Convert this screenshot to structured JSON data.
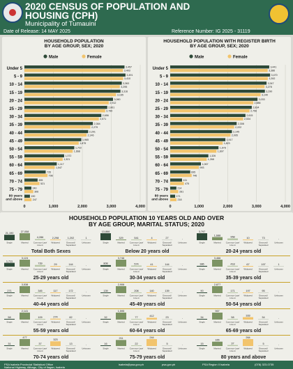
{
  "header": {
    "title_line1": "2020 CENSUS OF POPULATION AND",
    "title_line2": "HOUSING (CPH)",
    "municipality": "Municipality of Tumauini",
    "release": "Date of Release: 14 MAY 2025",
    "reference": "Reference Number:     IG 2025 - 31119"
  },
  "colors": {
    "male": "#2e4a38",
    "female": "#f2c46d",
    "header": "#2e6a4f",
    "accent": "#c9a227"
  },
  "legend": {
    "male": "Male",
    "female": "Female"
  },
  "marital_categories": [
    "Single",
    "Married",
    "Common-Law/Live-in",
    "Widowed",
    "Divorced/Separated/Annulled",
    "Unknown"
  ],
  "marital_category_short": [
    "Single",
    "Married",
    "Common-Law/Live-in",
    "Widowed",
    "Divorced/Separated",
    "Unknown"
  ],
  "chart_data": [
    {
      "type": "bar",
      "title_line1": "HOUSEHOLD POPULATION",
      "title_line2": "BY AGE GROUP, SEX; 2020",
      "categories": [
        "Under 5",
        "5 - 9",
        "10 - 14",
        "15 - 19",
        "20 - 24",
        "25 - 29",
        "30 - 34",
        "35 - 39",
        "40 - 44",
        "45 - 49",
        "50 - 54",
        "55 - 59",
        "60 - 64",
        "65 - 69",
        "70 - 74",
        "75 - 79",
        "80 years and above"
      ],
      "series": [
        {
          "name": "Male",
          "values": [
            3457,
            3491,
            3363,
            3316,
            3060,
            2861,
            2656,
            2364,
            2201,
            1965,
            1722,
            1372,
            1117,
            735,
            455,
            240,
            190
          ]
        },
        {
          "name": "Female",
          "values": [
            3403,
            3410,
            3295,
            3165,
            2912,
            2790,
            2571,
            2279,
            2146,
            1875,
            1668,
            1321,
            1047,
            798,
            521,
            306,
            247
          ]
        }
      ],
      "xlim": [
        0,
        4000
      ],
      "xticks": [
        "0",
        "1,000",
        "2,000",
        "3,000",
        "4,000"
      ]
    },
    {
      "type": "bar",
      "title_line1": "HOUSEHOLD POPULATION WITH REGISTER BIRTH",
      "title_line2": "BY AGE GROUP, SEX; 2020",
      "categories": [
        "Under 5",
        "5 - 9",
        "10 - 14",
        "15 - 19",
        "20 - 24",
        "25 - 29",
        "30 - 34",
        "35 - 39",
        "40 - 44",
        "45 - 49",
        "50 - 54",
        "55 - 59",
        "60 - 64",
        "65 - 69",
        "70 - 74",
        "75 - 79",
        "80 years and above"
      ],
      "series": [
        {
          "name": "Male",
          "values": [
            3441,
            3470,
            3347,
            3290,
            3033,
            2834,
            2615,
            2308,
            2145,
            1917,
            1678,
            1326,
            1067,
            695,
            411,
            214,
            171
          ]
        },
        {
          "name": "Female",
          "values": [
            3386,
            3392,
            3278,
            3140,
            2886,
            2756,
            2534,
            2222,
            2095,
            1823,
            1607,
            1268,
            993,
            746,
            475,
            281,
            218
          ]
        }
      ],
      "xlim": [
        0,
        4000
      ],
      "xticks": [
        "0",
        "1,000",
        "2,000",
        "3,000",
        "4,000"
      ]
    },
    {
      "type": "bar",
      "title_line1": "HOUSEHOLD POPULATION 10 YEARS OLD AND OVER",
      "title_line2": "BY AGE GROUP, MARITAL STATUS; 2020",
      "groups": [
        {
          "label": "Total Both Sexes",
          "values": [
            21190,
            27058,
            4286,
            2298,
            1202,
            1
          ]
        },
        {
          "label": "Below 20 years old",
          "values": [
            13866,
            329,
            541,
            4,
            27,
            0
          ]
        },
        {
          "label": "20-24 years old",
          "values": [
            3797,
            1688,
            958,
            10,
            73,
            0
          ]
        },
        {
          "label": "25-29 years old",
          "values": [
            1711,
            3124,
            739,
            29,
            144,
            0
          ]
        },
        {
          "label": "30-34 years old",
          "values": [
            808,
            3746,
            574,
            41,
            144,
            0
          ]
        },
        {
          "label": "35-39 years old",
          "values": [
            386,
            3466,
            418,
            67,
            197,
            1
          ]
        },
        {
          "label": "40-44 years old",
          "values": [
            271,
            3538,
            345,
            117,
            172,
            0
          ]
        },
        {
          "label": "45-49 years old",
          "values": [
            139,
            2906,
            208,
            140,
            139,
            0
          ]
        },
        {
          "label": "50-54 years old",
          "values": [
            90,
            2877,
            171,
            197,
            95,
            0
          ]
        },
        {
          "label": "55-59 years old",
          "values": [
            58,
            2141,
            109,
            274,
            82,
            0
          ]
        },
        {
          "label": "60-64 years old",
          "values": [
            32,
            1595,
            77,
            412,
            23,
            0
          ]
        },
        {
          "label": "65-69 years old",
          "values": [
            34,
            967,
            58,
            333,
            34,
            0
          ]
        },
        {
          "label": "70-74 years old",
          "values": [
            31,
            477,
            37,
            323,
            13,
            0
          ]
        },
        {
          "label": "75-79 years old",
          "values": [
            16,
            211,
            22,
            244,
            5,
            0
          ]
        },
        {
          "label": "80 years and above",
          "values": [
            15,
            165,
            37,
            264,
            5,
            0
          ]
        }
      ]
    }
  ],
  "footer": {
    "office": "PSA Isabela Provincial Statistical Office",
    "address": "National Highway, Alibagu, City of Ilagan, Isabela",
    "email": "isabela@psa.gov.ph",
    "web": "psa.gov.ph",
    "fb": "PSA Region II Isabela",
    "phone": "(078) 323-0735"
  }
}
